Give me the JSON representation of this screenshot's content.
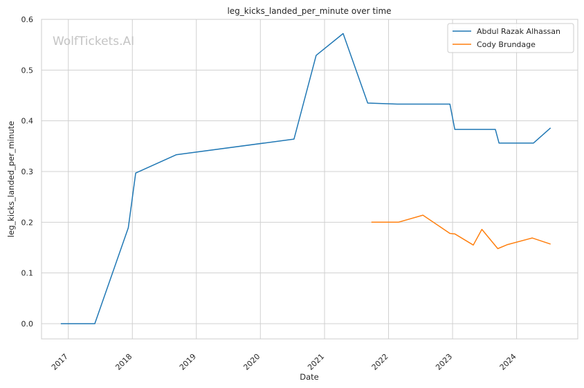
{
  "chart_data": {
    "type": "line",
    "title": "leg_kicks_landed_per_minute over time",
    "xlabel": "Date",
    "ylabel": "leg_kicks_landed_per_minute",
    "watermark": "WolfTickets.AI",
    "xlim": [
      "2016-08-01",
      "2024-12-15"
    ],
    "ylim": [
      -0.03,
      0.6
    ],
    "x_ticks": [
      "2017",
      "2018",
      "2019",
      "2020",
      "2021",
      "2022",
      "2023",
      "2024"
    ],
    "y_ticks": [
      "0.0",
      "0.1",
      "0.2",
      "0.3",
      "0.4",
      "0.5",
      "0.6"
    ],
    "grid": true,
    "legend_position": "top-right",
    "series": [
      {
        "name": "Abdul Razak Alhassan",
        "color": "#1f77b4",
        "points": [
          [
            "2016-11-19",
            0.0
          ],
          [
            "2017-06-01",
            0.0
          ],
          [
            "2017-12-09",
            0.189
          ],
          [
            "2018-01-20",
            0.297
          ],
          [
            "2018-09-08",
            0.333
          ],
          [
            "2020-07-11",
            0.364
          ],
          [
            "2020-11-14",
            0.529
          ],
          [
            "2021-04-17",
            0.572
          ],
          [
            "2021-09-04",
            0.435
          ],
          [
            "2022-02-19",
            0.433
          ],
          [
            "2022-12-17",
            0.433
          ],
          [
            "2023-01-14",
            0.383
          ],
          [
            "2023-09-02",
            0.383
          ],
          [
            "2023-09-23",
            0.356
          ],
          [
            "2024-04-06",
            0.356
          ],
          [
            "2024-07-13",
            0.386
          ]
        ]
      },
      {
        "name": "Cody Brundage",
        "color": "#ff7f0e",
        "points": [
          [
            "2021-09-25",
            0.2
          ],
          [
            "2022-02-26",
            0.2
          ],
          [
            "2022-07-16",
            0.214
          ],
          [
            "2022-12-17",
            0.178
          ],
          [
            "2023-01-14",
            0.177
          ],
          [
            "2023-04-29",
            0.155
          ],
          [
            "2023-06-17",
            0.186
          ],
          [
            "2023-09-16",
            0.148
          ],
          [
            "2023-11-11",
            0.156
          ],
          [
            "2024-03-30",
            0.169
          ],
          [
            "2024-07-13",
            0.157
          ]
        ]
      }
    ]
  }
}
